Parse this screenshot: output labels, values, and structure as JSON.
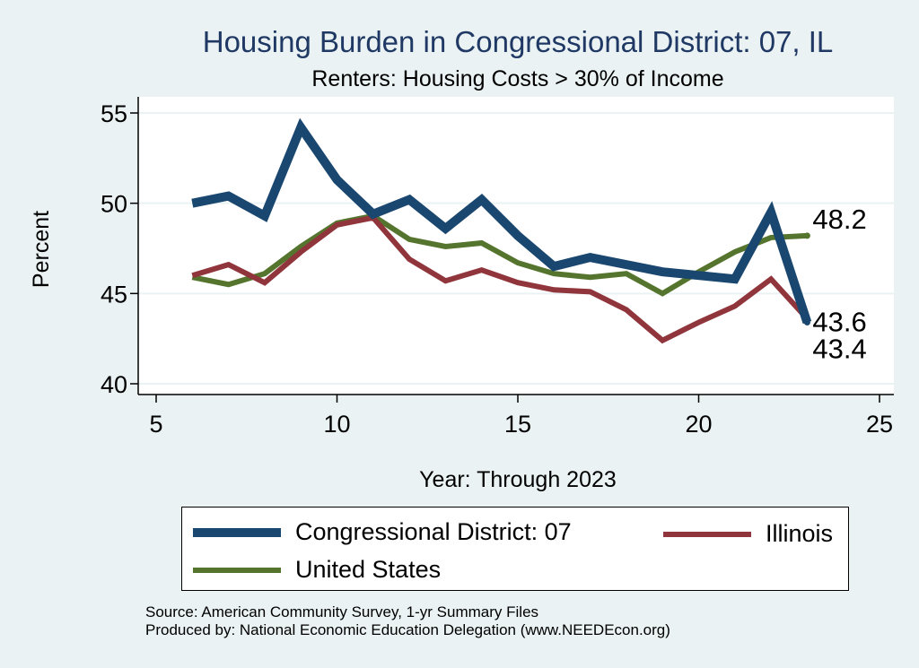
{
  "chart_data": {
    "type": "line",
    "title": "Housing Burden in Congressional District:  07, IL",
    "subtitle": "Renters: Housing Costs > 30% of Income",
    "xlabel": "Year: Through 2023",
    "ylabel": "Percent",
    "xlim": [
      5,
      25
    ],
    "ylim": [
      40,
      55
    ],
    "xticks": [
      5,
      10,
      15,
      20,
      25
    ],
    "yticks": [
      40,
      45,
      50,
      55
    ],
    "grid": true,
    "legend_position": "bottom",
    "series": [
      {
        "name": "Congressional District:  07",
        "color": "#1a476f",
        "x": [
          6,
          7,
          8,
          9,
          10,
          11,
          12,
          13,
          14,
          15,
          16,
          17,
          18,
          19,
          20,
          21,
          22,
          23
        ],
        "values": [
          50.0,
          50.4,
          49.3,
          54.2,
          51.3,
          49.4,
          50.2,
          48.6,
          50.2,
          48.2,
          46.5,
          47.0,
          46.6,
          46.2,
          46.0,
          45.8,
          49.5,
          43.4
        ],
        "end_label": "43.4"
      },
      {
        "name": "Illinois",
        "color": "#90353b",
        "x": [
          6,
          7,
          8,
          9,
          10,
          11,
          12,
          13,
          14,
          15,
          16,
          17,
          18,
          19,
          20,
          21,
          22,
          23
        ],
        "values": [
          46.0,
          46.6,
          45.6,
          47.3,
          48.8,
          49.2,
          46.9,
          45.7,
          46.3,
          45.6,
          45.2,
          45.1,
          44.1,
          42.4,
          43.4,
          44.3,
          45.8,
          43.6
        ],
        "end_label": "43.6"
      },
      {
        "name": "United States",
        "color": "#55752f",
        "x": [
          6,
          7,
          8,
          9,
          10,
          11,
          12,
          13,
          14,
          15,
          16,
          17,
          18,
          19,
          20,
          21,
          22,
          23
        ],
        "values": [
          45.9,
          45.5,
          46.1,
          47.6,
          48.9,
          49.3,
          48.0,
          47.6,
          47.8,
          46.7,
          46.1,
          45.9,
          46.1,
          45.0,
          46.2,
          47.3,
          48.1,
          48.2
        ],
        "end_label": "48.2"
      }
    ],
    "source_lines": [
      "Source: American Community Survey, 1-yr Summary Files",
      "Produced by: National Economic Education Delegation (www.NEEDEcon.org)"
    ]
  }
}
